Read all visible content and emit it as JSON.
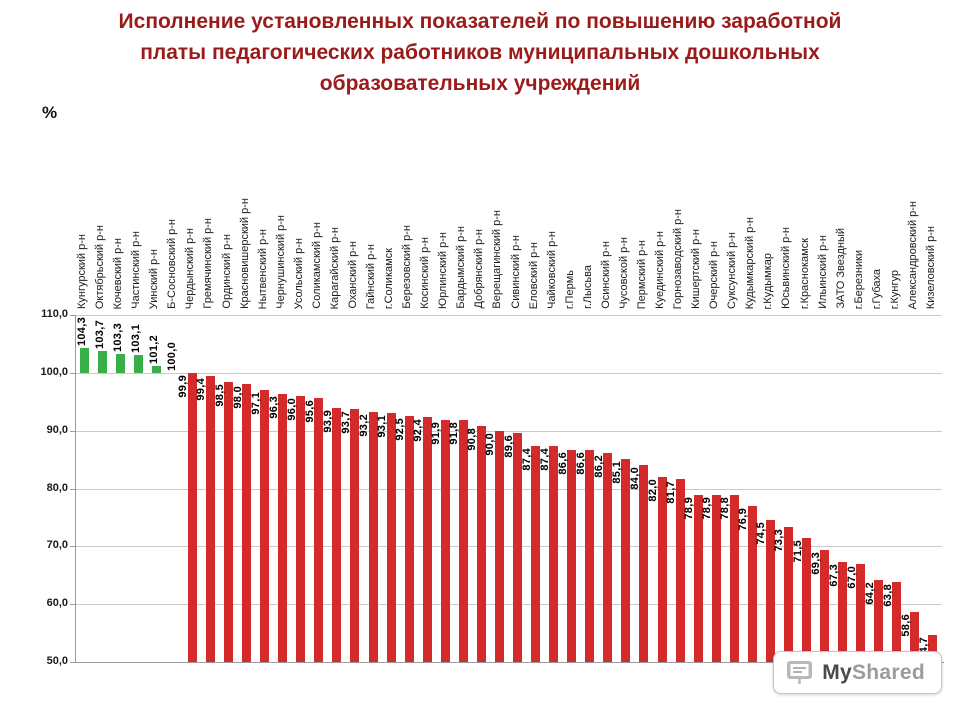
{
  "slide": {
    "title_lines": [
      "Исполнение установленных показателей по повышению заработной",
      "платы педагогических работников муниципальных дошкольных",
      "образовательных учреждений"
    ],
    "title_color": "#9b1b1b",
    "unit_label": "%"
  },
  "chart_data": {
    "type": "bar",
    "title": "Исполнение установленных показателей по повышению заработной платы педагогических работников муниципальных дошкольных образовательных учреждений",
    "ylabel": "%",
    "ylim": [
      50,
      110
    ],
    "threshold": 100,
    "grid": true,
    "y_ticks": [
      "110,0",
      "100,0",
      "90,0",
      "80,0",
      "70,0",
      "60,0",
      "50,0"
    ],
    "colors": {
      "above_threshold": "#3aae49",
      "below_threshold": "#d42a2a",
      "gridline": "#cacaca",
      "axis": "#9a9a9a"
    },
    "categories": [
      "Кунгурский р-н",
      "Октябрьский р-н",
      "Кочевский р-н",
      "Частинский р-н",
      "Уинский р-н",
      "Б-Сосновский р-н",
      "Чердынский р-н",
      "Гремячинский р-н",
      "Ординский р-н",
      "Красновишерский р-н",
      "Нытвенский р-н",
      "Чернушинский р-н",
      "Усольский р-н",
      "Соликамский р-н",
      "Карагайский р-н",
      "Оханский р-н",
      "Гайнский р-н",
      "г.Соликамск",
      "Березовский р-н",
      "Косинский р-н",
      "Юрлинский р-н",
      "Бардымский р-н",
      "Добрянский р-н",
      "Верещагинский р-н",
      "Сивинский р-н",
      "Еловский р-н",
      "Чайковский р-н",
      "г.Пермь",
      "г.Лысьва",
      "Осинский р-н",
      "Чусовской р-н",
      "Пермский р-н",
      "Куединский р-н",
      "Горнозаводский р-н",
      "Кишертский р-н",
      "Очерский р-н",
      "Суксунский р-н",
      "Кудымкарский р-н",
      "г.Кудымкар",
      "Юсьвинский р-н",
      "г.Краснокамск",
      "Ильинский р-н",
      "ЗАТО Звездный",
      "г.Березники",
      "г.Губаха",
      "г.Кунгур",
      "Александровский р-н",
      "Кизеловский р-н"
    ],
    "values": [
      104.3,
      103.7,
      103.3,
      103.1,
      101.2,
      100.0,
      99.9,
      99.4,
      98.5,
      98.0,
      97.1,
      96.3,
      96.0,
      95.6,
      93.9,
      93.7,
      93.2,
      93.1,
      92.5,
      92.4,
      91.9,
      91.8,
      90.8,
      90.0,
      89.6,
      87.4,
      87.4,
      86.6,
      86.6,
      86.2,
      85.1,
      84.0,
      82.0,
      81.7,
      78.9,
      78.9,
      78.8,
      76.9,
      74.5,
      73.3,
      71.5,
      69.3,
      67.3,
      67.0,
      64.2,
      63.8,
      58.6,
      54.7
    ],
    "value_labels": [
      "104,3",
      "103,7",
      "103,3",
      "103,1",
      "101,2",
      "100,0",
      "99,9",
      "99,4",
      "98,5",
      "98,0",
      "97,1",
      "96,3",
      "96,0",
      "95,6",
      "93,9",
      "93,7",
      "93,2",
      "93,1",
      "92,5",
      "92,4",
      "91,9",
      "91,8",
      "90,8",
      "90,0",
      "89,6",
      "87,4",
      "87,4",
      "86,6",
      "86,6",
      "86,2",
      "85,1",
      "84,0",
      "82,0",
      "81,7",
      "78,9",
      "78,9",
      "78,8",
      "76,9",
      "74,5",
      "73,3",
      "71,5",
      "69,3",
      "67,3",
      "67,0",
      "64,2",
      "63,8",
      "58,6",
      "54,7"
    ]
  },
  "watermark": {
    "text_primary": "My",
    "text_secondary": "Shared"
  }
}
